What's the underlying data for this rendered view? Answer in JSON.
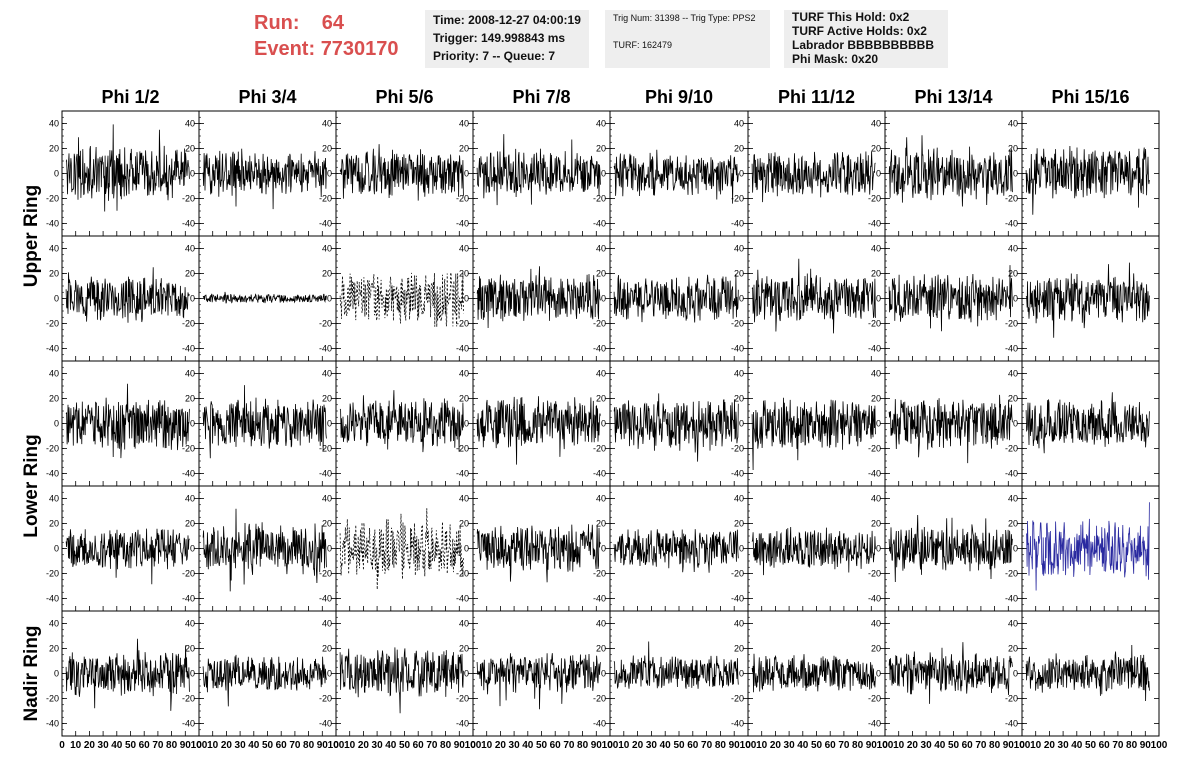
{
  "header": {
    "run_label": "Run:",
    "run_value": "64",
    "event_label": "Event:",
    "event_value": "7730170",
    "accent_color": "#d94f4f",
    "box_color": "#eeeeee",
    "time_box": {
      "time": "Time: 2008-12-27 04:00:19",
      "trigger": "Trigger: 149.998843 ms",
      "priority": "Priority: 7 -- Queue: 7"
    },
    "trig_box": {
      "trig": "Trig Num: 31398 -- Trig Type: PPS2",
      "turf": "TURF: 162479"
    },
    "turf_box": {
      "hold": "TURF This Hold: 0x2",
      "active": "TURF Active Holds: 0x2",
      "labrador": "Labrador BBBBBBBBBB",
      "phimask": "Phi Mask: 0x20"
    }
  },
  "chart_data": {
    "type": "line",
    "columns": [
      "Phi 1/2",
      "Phi 3/4",
      "Phi 5/6",
      "Phi 7/8",
      "Phi 9/10",
      "Phi 11/12",
      "Phi 13/14",
      "Phi 15/16"
    ],
    "row_groups": [
      {
        "label": "Upper Ring",
        "rows": [
          0,
          1
        ]
      },
      {
        "label": "Lower Ring",
        "rows": [
          2,
          3
        ]
      },
      {
        "label": "Nadir Ring",
        "rows": [
          4
        ]
      }
    ],
    "xlim": [
      0,
      100
    ],
    "x_ticks": [
      0,
      10,
      20,
      30,
      40,
      50,
      60,
      70,
      80,
      90,
      100
    ],
    "x_tick_labels": [
      "0",
      "10",
      "20",
      "30",
      "40",
      "50",
      "60",
      "70",
      "80",
      "90",
      "100"
    ],
    "ylim": [
      -50,
      50
    ],
    "y_ticks": [
      40,
      20,
      0,
      -20,
      -40
    ],
    "y_tick_labels": [
      "40",
      "20",
      "0",
      "-20",
      "-40"
    ],
    "default_color": "#000000",
    "highlight_color": "#2a2aa0",
    "amplitude_rows": [
      [
        18,
        15,
        16,
        16,
        15,
        15,
        17,
        17
      ],
      [
        15,
        3,
        18,
        16,
        15,
        16,
        16,
        16
      ],
      [
        17,
        16,
        17,
        17,
        17,
        17,
        17,
        16
      ],
      [
        14,
        17,
        19,
        16,
        13,
        14,
        15,
        19
      ],
      [
        15,
        12,
        16,
        13,
        12,
        13,
        14,
        13
      ]
    ],
    "dashed_panels": [
      [
        1,
        2
      ],
      [
        3,
        2
      ]
    ],
    "highlighted_panels": [
      [
        3,
        7
      ]
    ]
  }
}
